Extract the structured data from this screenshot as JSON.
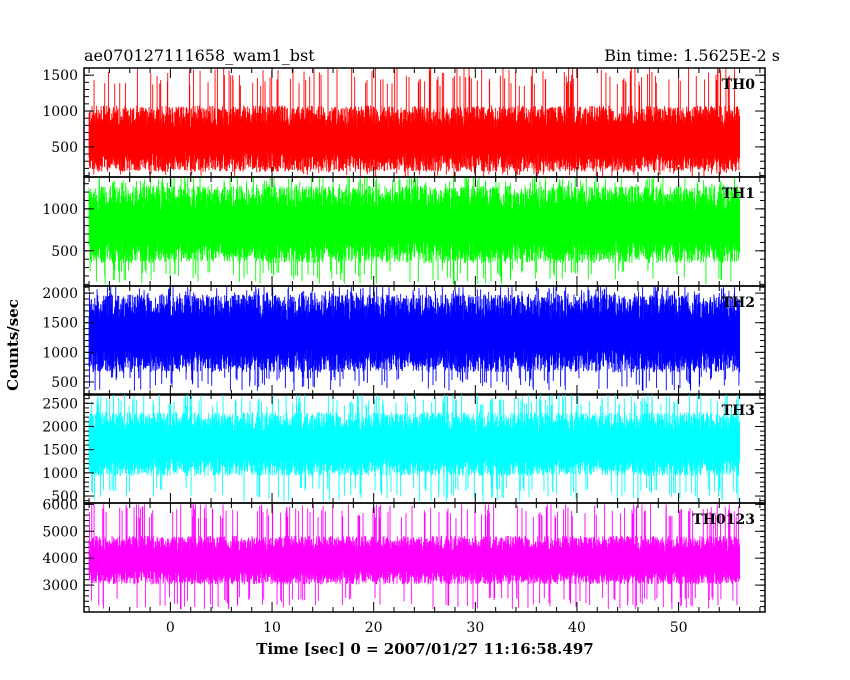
{
  "header": {
    "title_left": "ae070127111658_wam1_bst",
    "title_right": "Bin time: 1.5625E-2 s"
  },
  "chart_data": {
    "type": "line",
    "xlabel": "Time [sec] 0 = 2007/01/27 11:16:58.497",
    "ylabel": "Counts/sec",
    "xlim": [
      -8.5,
      58.5
    ],
    "data_range_x": [
      -8,
      56
    ],
    "x_ticks": [
      0,
      10,
      20,
      30,
      40,
      50
    ],
    "grid": false,
    "panels": [
      {
        "name": "TH0",
        "color": "#ff0000",
        "ylim": [
          80,
          1600
        ],
        "y_ticks": [
          500,
          1000,
          1500
        ],
        "baseline": 600,
        "spread": 280,
        "min": 80,
        "max": 1600,
        "peak_max": 1600
      },
      {
        "name": "TH1",
        "color": "#00ff00",
        "ylim": [
          80,
          1380
        ],
        "y_ticks": [
          500,
          1000
        ],
        "baseline": 800,
        "spread": 280,
        "min": 100,
        "max": 1380,
        "peak_max": 1380
      },
      {
        "name": "TH2",
        "color": "#0000ff",
        "ylim": [
          280,
          2120
        ],
        "y_ticks": [
          500,
          1000,
          1500,
          2000
        ],
        "baseline": 1300,
        "spread": 400,
        "min": 350,
        "max": 2100,
        "peak_max": 2100
      },
      {
        "name": "TH3",
        "color": "#00ffff",
        "ylim": [
          350,
          2700
        ],
        "y_ticks": [
          500,
          1000,
          1500,
          2000,
          2500
        ],
        "baseline": 1600,
        "spread": 420,
        "min": 380,
        "max": 2700,
        "peak_max": 2700
      },
      {
        "name": "TH0123",
        "color": "#ff00ff",
        "ylim": [
          2000,
          6050
        ],
        "y_ticks": [
          3000,
          4000,
          5000,
          6000
        ],
        "baseline": 3900,
        "spread": 550,
        "min": 2100,
        "max": 6000,
        "peak_max": 6000
      }
    ]
  }
}
